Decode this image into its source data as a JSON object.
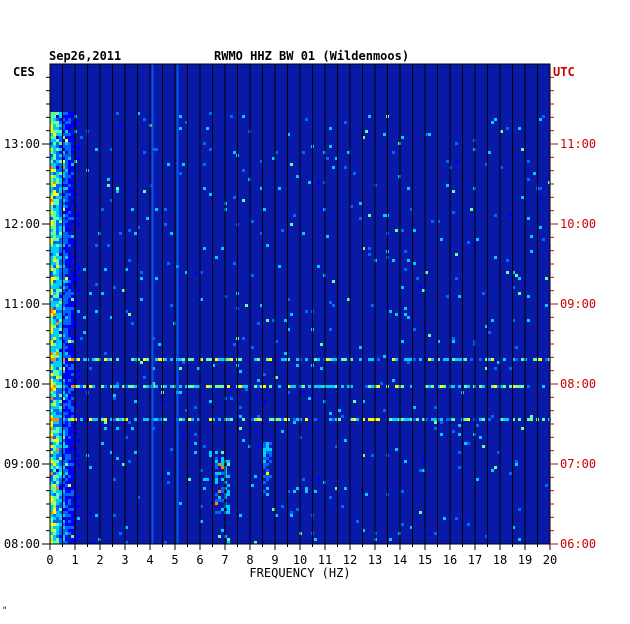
{
  "header": {
    "date": "Sep26,2011",
    "station": "RWMO HHZ BW 01 (Wildenmoos)",
    "left_tz": "CES",
    "right_tz": "UTC"
  },
  "corner_mark": "\"",
  "chart_data": {
    "type": "heatmap",
    "title": "RWMO HHZ BW 01 (Wildenmoos)",
    "xlabel": "FREQUENCY (HZ)",
    "x_ticks": [
      "0",
      "1",
      "2",
      "3",
      "4",
      "5",
      "6",
      "7",
      "8",
      "9",
      "10",
      "11",
      "12",
      "13",
      "14",
      "15",
      "16",
      "17",
      "18",
      "19",
      "20"
    ],
    "xlim": [
      0,
      20
    ],
    "y_ticks_left": [
      "13:00",
      "12:00",
      "11:00",
      "10:00",
      "09:00",
      "08:00"
    ],
    "y_ticks_right": [
      "11:00",
      "10:00",
      "09:00",
      "08:00",
      "07:00",
      "06:00"
    ],
    "ylim_local_hours": [
      8.0,
      14.0
    ],
    "grid": true,
    "colormap": [
      "#000080",
      "#0000cd",
      "#0000ff",
      "#0066ff",
      "#00ccff",
      "#66ff99",
      "#ffff00",
      "#ff8800"
    ],
    "background_color": "#0a1aa8",
    "features": {
      "low_frequency_band_hz": [
        0.0,
        1.5
      ],
      "persistent_lines_hz": [
        4.1,
        5.1
      ],
      "bursts_hz": [
        6.8,
        8.6
      ],
      "strong_rows_local_time": [
        "10:00",
        "10:20",
        "09:35"
      ]
    }
  }
}
